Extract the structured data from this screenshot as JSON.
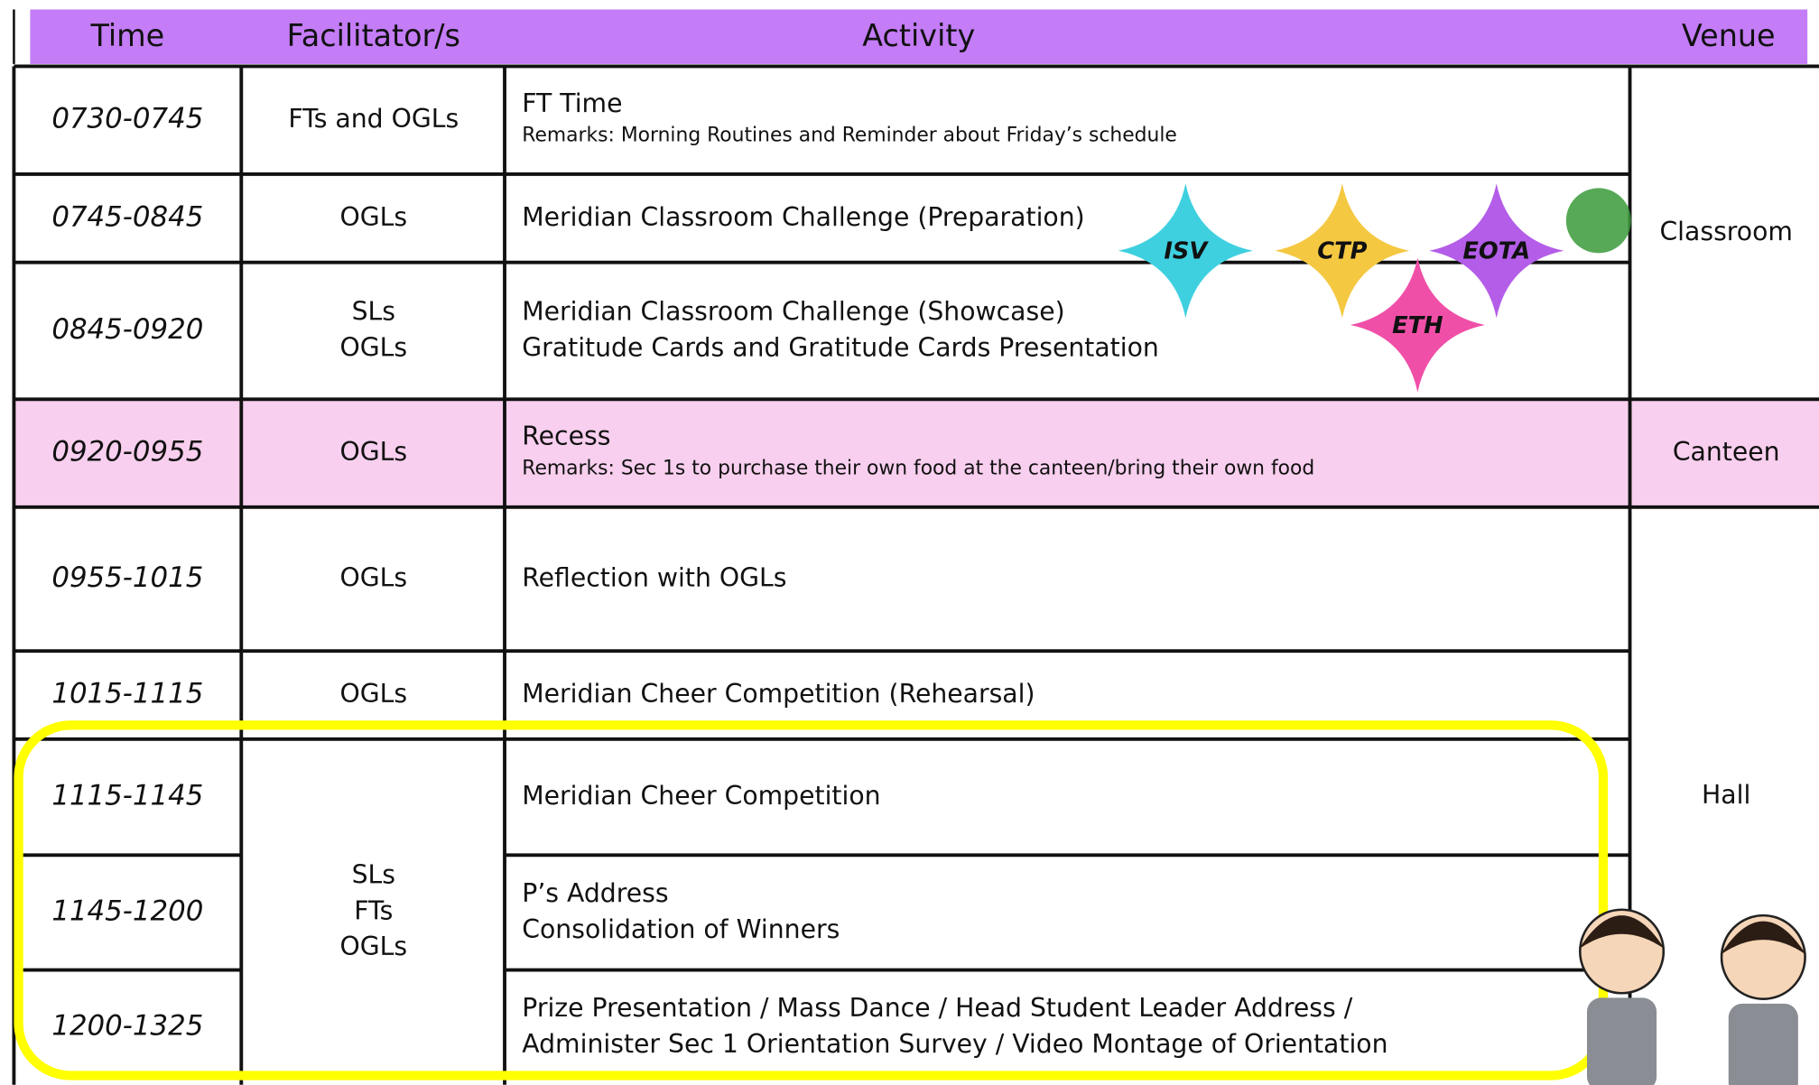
{
  "header": {
    "columns": [
      "Time",
      "Facilitator/s",
      "Activity",
      "Venue"
    ]
  },
  "rows": [
    {
      "time": "0730-0745",
      "facilitators": [
        "FTs and OGLs"
      ],
      "activity": [
        "FT Time"
      ],
      "remarks": "Remarks: Morning Routines and Reminder about Friday’s schedule"
    },
    {
      "time": "0745-0845",
      "facilitators": [
        "OGLs"
      ],
      "activity": [
        "Meridian Classroom Challenge (Preparation)"
      ]
    },
    {
      "time": "0845-0920",
      "facilitators": [
        "SLs",
        "OGLs"
      ],
      "activity": [
        "Meridian Classroom Challenge (Showcase)",
        "Gratitude Cards and Gratitude Cards Presentation"
      ]
    },
    {
      "time": "0920-0955",
      "facilitators": [
        "OGLs"
      ],
      "activity": [
        "Recess"
      ],
      "remarks": "Remarks: Sec 1s to purchase their own food at the canteen/bring their own food"
    },
    {
      "time": "0955-1015",
      "facilitators": [
        "OGLs"
      ],
      "activity": [
        "Reflection with OGLs"
      ]
    },
    {
      "time": "1015-1115",
      "facilitators": [
        "OGLs"
      ],
      "activity": [
        "Meridian Cheer Competition (Rehearsal)"
      ]
    },
    {
      "time": "1115-1145",
      "activity": [
        "Meridian Cheer Competition"
      ]
    },
    {
      "time": "1145-1200",
      "activity": [
        "P’s Address",
        "Consolidation of Winners"
      ]
    },
    {
      "time": "1200-1325",
      "activity": [
        "Prize Presentation / Mass Dance / Head Student Leader Address /",
        "Administer Sec 1 Orientation Survey / Video Montage of Orientation"
      ]
    }
  ],
  "merged_facilitators": [
    "SLs",
    "FTs",
    "OGLs"
  ],
  "venues": [
    "Classroom",
    "Canteen",
    "Hall"
  ],
  "badges": [
    "ISV",
    "CTP",
    "EOTA",
    "ETH"
  ]
}
